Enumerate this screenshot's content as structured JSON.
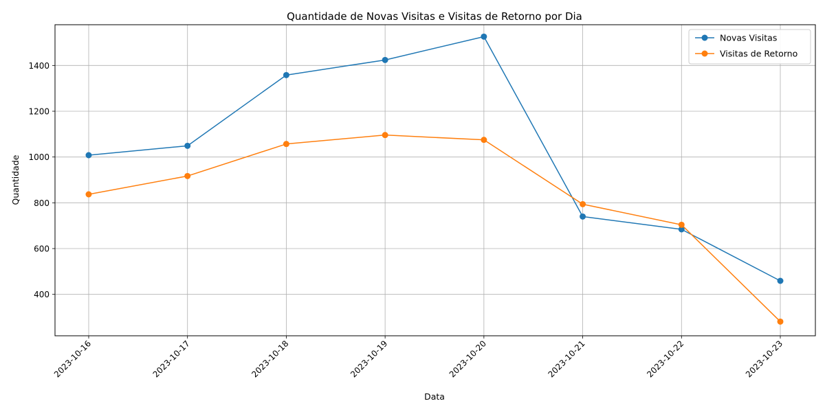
{
  "chart_data": {
    "type": "line",
    "title": "Quantidade de Novas Visitas e Visitas de Retorno por Dia",
    "xlabel": "Data",
    "ylabel": "Quantidade",
    "x": [
      "2023-10-16",
      "2023-10-17",
      "2023-10-18",
      "2023-10-19",
      "2023-10-20",
      "2023-10-21",
      "2023-10-22",
      "2023-10-23"
    ],
    "yticks": [
      400,
      600,
      800,
      1000,
      1200,
      1400
    ],
    "ylim": [
      219,
      1578
    ],
    "grid": true,
    "legend_position": "top-right",
    "series": [
      {
        "name": "Novas Visitas",
        "color": "#1f77b4",
        "values": [
          1008,
          1049,
          1358,
          1424,
          1526,
          740,
          684,
          459
        ]
      },
      {
        "name": "Visitas de Retorno",
        "color": "#ff7f0e",
        "values": [
          837,
          917,
          1057,
          1096,
          1075,
          794,
          704,
          281
        ]
      }
    ]
  }
}
